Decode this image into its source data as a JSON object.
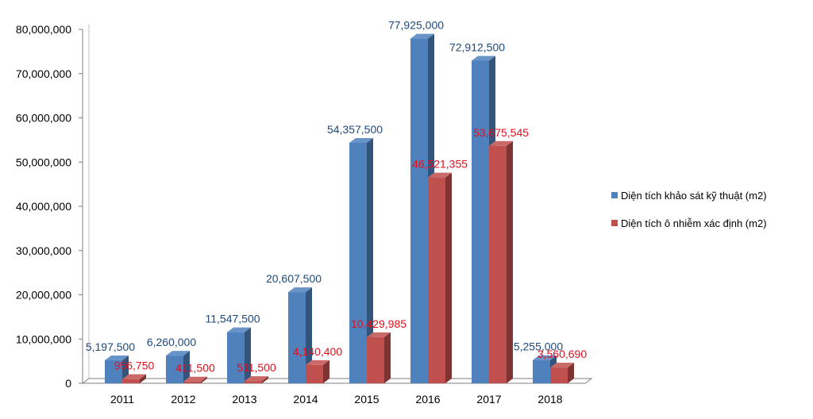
{
  "chart_data": {
    "type": "bar",
    "chart_style": "3d-clustered-column",
    "categories": [
      "2011",
      "2012",
      "2013",
      "2014",
      "2015",
      "2016",
      "2017",
      "2018"
    ],
    "series": [
      {
        "name": "Diện tích khảo sát kỹ thuật (m2)",
        "color": "#4F81BD",
        "label_color": "#1F497D",
        "values": [
          5197500,
          6260000,
          11547500,
          20607500,
          54357500,
          77925000,
          72912500,
          5255000
        ],
        "labels": [
          "5,197,500",
          "6,260,000",
          "11,547,500",
          "20,607,500",
          "54,357,500",
          "77,925,000",
          "72,912,500",
          "5,255,000"
        ]
      },
      {
        "name": "Diện tích ô nhiễm xác định (m2)",
        "color": "#C0504D",
        "label_color": "#E0101E",
        "values": [
          956750,
          411500,
          511500,
          4140400,
          10429985,
          46521355,
          53675545,
          3560690
        ],
        "labels": [
          "956,750",
          "411,500",
          "511,500",
          "4,140,400",
          "10,429,985",
          "46,521,355",
          "53,675,545",
          "3,560,690"
        ]
      }
    ],
    "y_ticks": [
      "0",
      "10,000,000",
      "20,000,000",
      "30,000,000",
      "40,000,000",
      "50,000,000",
      "60,000,000",
      "70,000,000",
      "80,000,000"
    ],
    "ylim": [
      0,
      80000000
    ],
    "grid": false,
    "legend_position": "right"
  }
}
